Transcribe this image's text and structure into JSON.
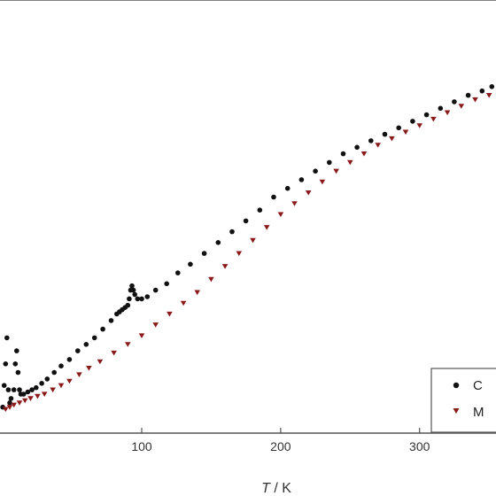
{
  "chart_data": {
    "type": "scatter",
    "xlabel_var": "T",
    "xlabel_unit": " / K",
    "ylabel": "",
    "xlim": [
      -2,
      355
    ],
    "ylim": [
      0,
      1
    ],
    "x_ticks": [
      100,
      200,
      300
    ],
    "grid": false,
    "legend": {
      "placement": "bottom-right",
      "entries": [
        "C",
        "M"
      ]
    },
    "colors": {
      "series_1": "#111111",
      "series_2": "#8b1a1a",
      "axis": "#555555"
    },
    "series": [
      {
        "name": "C",
        "marker": "circle",
        "points": [
          [
            0,
            0.06
          ],
          [
            1,
            0.11
          ],
          [
            2,
            0.16
          ],
          [
            3,
            0.22
          ],
          [
            4,
            0.1
          ],
          [
            5,
            0.07
          ],
          [
            6,
            0.08
          ],
          [
            8,
            0.1
          ],
          [
            9,
            0.16
          ],
          [
            10,
            0.19
          ],
          [
            11,
            0.14
          ],
          [
            12,
            0.1
          ],
          [
            13,
            0.09
          ],
          [
            15,
            0.09
          ],
          [
            18,
            0.095
          ],
          [
            21,
            0.1
          ],
          [
            24,
            0.105
          ],
          [
            28,
            0.115
          ],
          [
            32,
            0.125
          ],
          [
            37,
            0.14
          ],
          [
            42,
            0.155
          ],
          [
            48,
            0.17
          ],
          [
            54,
            0.19
          ],
          [
            60,
            0.205
          ],
          [
            66,
            0.22
          ],
          [
            72,
            0.24
          ],
          [
            78,
            0.26
          ],
          [
            82,
            0.275
          ],
          [
            84,
            0.28
          ],
          [
            86,
            0.285
          ],
          [
            88,
            0.29
          ],
          [
            90,
            0.295
          ],
          [
            91,
            0.31
          ],
          [
            92,
            0.33
          ],
          [
            93,
            0.34
          ],
          [
            94,
            0.33
          ],
          [
            95,
            0.32
          ],
          [
            97,
            0.31
          ],
          [
            100,
            0.31
          ],
          [
            104,
            0.315
          ],
          [
            110,
            0.33
          ],
          [
            118,
            0.345
          ],
          [
            126,
            0.37
          ],
          [
            135,
            0.39
          ],
          [
            145,
            0.415
          ],
          [
            155,
            0.44
          ],
          [
            165,
            0.465
          ],
          [
            175,
            0.49
          ],
          [
            185,
            0.515
          ],
          [
            195,
            0.545
          ],
          [
            205,
            0.565
          ],
          [
            215,
            0.585
          ],
          [
            225,
            0.605
          ],
          [
            235,
            0.625
          ],
          [
            245,
            0.645
          ],
          [
            255,
            0.66
          ],
          [
            265,
            0.675
          ],
          [
            275,
            0.69
          ],
          [
            285,
            0.705
          ],
          [
            295,
            0.72
          ],
          [
            305,
            0.735
          ],
          [
            315,
            0.75
          ],
          [
            325,
            0.765
          ],
          [
            335,
            0.78
          ],
          [
            345,
            0.79
          ],
          [
            352,
            0.8
          ]
        ]
      },
      {
        "name": "M",
        "marker": "triangle-down",
        "points": [
          [
            2,
            0.055
          ],
          [
            5,
            0.06
          ],
          [
            8,
            0.065
          ],
          [
            12,
            0.07
          ],
          [
            16,
            0.075
          ],
          [
            20,
            0.08
          ],
          [
            25,
            0.085
          ],
          [
            30,
            0.09
          ],
          [
            36,
            0.1
          ],
          [
            42,
            0.11
          ],
          [
            48,
            0.12
          ],
          [
            55,
            0.135
          ],
          [
            62,
            0.15
          ],
          [
            70,
            0.165
          ],
          [
            80,
            0.185
          ],
          [
            90,
            0.205
          ],
          [
            100,
            0.225
          ],
          [
            110,
            0.25
          ],
          [
            120,
            0.275
          ],
          [
            130,
            0.3
          ],
          [
            140,
            0.325
          ],
          [
            150,
            0.355
          ],
          [
            160,
            0.385
          ],
          [
            170,
            0.415
          ],
          [
            180,
            0.445
          ],
          [
            190,
            0.475
          ],
          [
            200,
            0.505
          ],
          [
            210,
            0.53
          ],
          [
            220,
            0.555
          ],
          [
            230,
            0.58
          ],
          [
            240,
            0.605
          ],
          [
            250,
            0.625
          ],
          [
            260,
            0.645
          ],
          [
            270,
            0.665
          ],
          [
            280,
            0.68
          ],
          [
            290,
            0.695
          ],
          [
            300,
            0.71
          ],
          [
            310,
            0.725
          ],
          [
            320,
            0.74
          ],
          [
            330,
            0.755
          ],
          [
            340,
            0.77
          ],
          [
            350,
            0.78
          ]
        ]
      }
    ]
  }
}
